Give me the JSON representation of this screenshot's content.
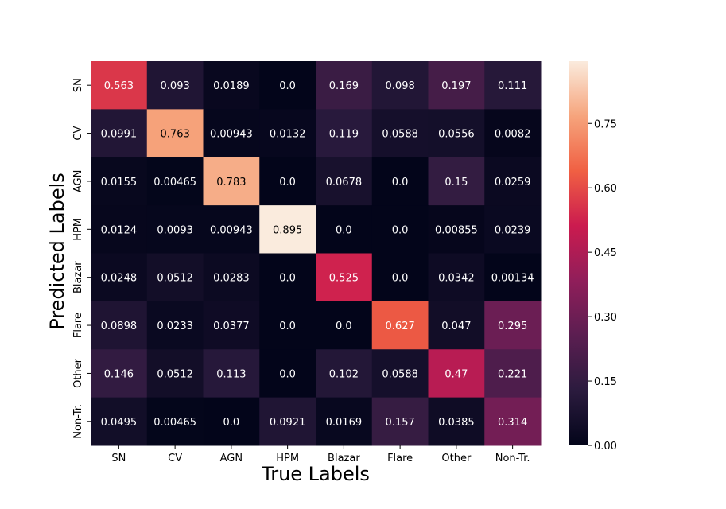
{
  "chart_data": {
    "type": "heatmap",
    "title": "",
    "xlabel": "True Labels",
    "ylabel": "Predicted Labels",
    "x_categories": [
      "SN",
      "CV",
      "AGN",
      "HPM",
      "Blazar",
      "Flare",
      "Other",
      "Non-Tr."
    ],
    "y_categories": [
      "SN",
      "CV",
      "AGN",
      "HPM",
      "Blazar",
      "Flare",
      "Other",
      "Non-Tr."
    ],
    "values": [
      [
        0.563,
        0.093,
        0.0189,
        0.0,
        0.169,
        0.098,
        0.197,
        0.111
      ],
      [
        0.0991,
        0.763,
        0.00943,
        0.0132,
        0.119,
        0.0588,
        0.0556,
        0.0082
      ],
      [
        0.0155,
        0.00465,
        0.783,
        0.0,
        0.0678,
        0.0,
        0.15,
        0.0259
      ],
      [
        0.0124,
        0.0093,
        0.00943,
        0.895,
        0.0,
        0.0,
        0.00855,
        0.0239
      ],
      [
        0.0248,
        0.0512,
        0.0283,
        0.0,
        0.525,
        0.0,
        0.0342,
        0.00134
      ],
      [
        0.0898,
        0.0233,
        0.0377,
        0.0,
        0.0,
        0.627,
        0.047,
        0.295
      ],
      [
        0.146,
        0.0512,
        0.113,
        0.0,
        0.102,
        0.0588,
        0.47,
        0.221
      ],
      [
        0.0495,
        0.00465,
        0.0,
        0.0921,
        0.0169,
        0.157,
        0.0385,
        0.314
      ]
    ],
    "value_labels": [
      [
        "0.563",
        "0.093",
        "0.0189",
        "0.0",
        "0.169",
        "0.098",
        "0.197",
        "0.111"
      ],
      [
        "0.0991",
        "0.763",
        "0.00943",
        "0.0132",
        "0.119",
        "0.0588",
        "0.0556",
        "0.0082"
      ],
      [
        "0.0155",
        "0.00465",
        "0.783",
        "0.0",
        "0.0678",
        "0.0",
        "0.15",
        "0.0259"
      ],
      [
        "0.0124",
        "0.0093",
        "0.00943",
        "0.895",
        "0.0",
        "0.0",
        "0.00855",
        "0.0239"
      ],
      [
        "0.0248",
        "0.0512",
        "0.0283",
        "0.0",
        "0.525",
        "0.0",
        "0.0342",
        "0.00134"
      ],
      [
        "0.0898",
        "0.0233",
        "0.0377",
        "0.0",
        "0.0",
        "0.627",
        "0.047",
        "0.295"
      ],
      [
        "0.146",
        "0.0512",
        "0.113",
        "0.0",
        "0.102",
        "0.0588",
        "0.47",
        "0.221"
      ],
      [
        "0.0495",
        "0.00465",
        "0.0",
        "0.0921",
        "0.0169",
        "0.157",
        "0.0385",
        "0.314"
      ]
    ],
    "colorbar": {
      "vmin": 0.0,
      "vmax": 0.895,
      "ticks": [
        0.0,
        0.15,
        0.3,
        0.45,
        0.6,
        0.75
      ],
      "tick_labels": [
        "0.00",
        "0.15",
        "0.30",
        "0.45",
        "0.60",
        "0.75"
      ],
      "colormap": "rocket"
    },
    "colormap_stops": [
      "#03051a",
      "#2b1b3e",
      "#5b1e51",
      "#901e5a",
      "#cb1b4f",
      "#f06043",
      "#f6a47c",
      "#faebdd"
    ],
    "annotation_colors": {
      "light_text": "#ffffff",
      "dark_text": "#000000"
    }
  }
}
